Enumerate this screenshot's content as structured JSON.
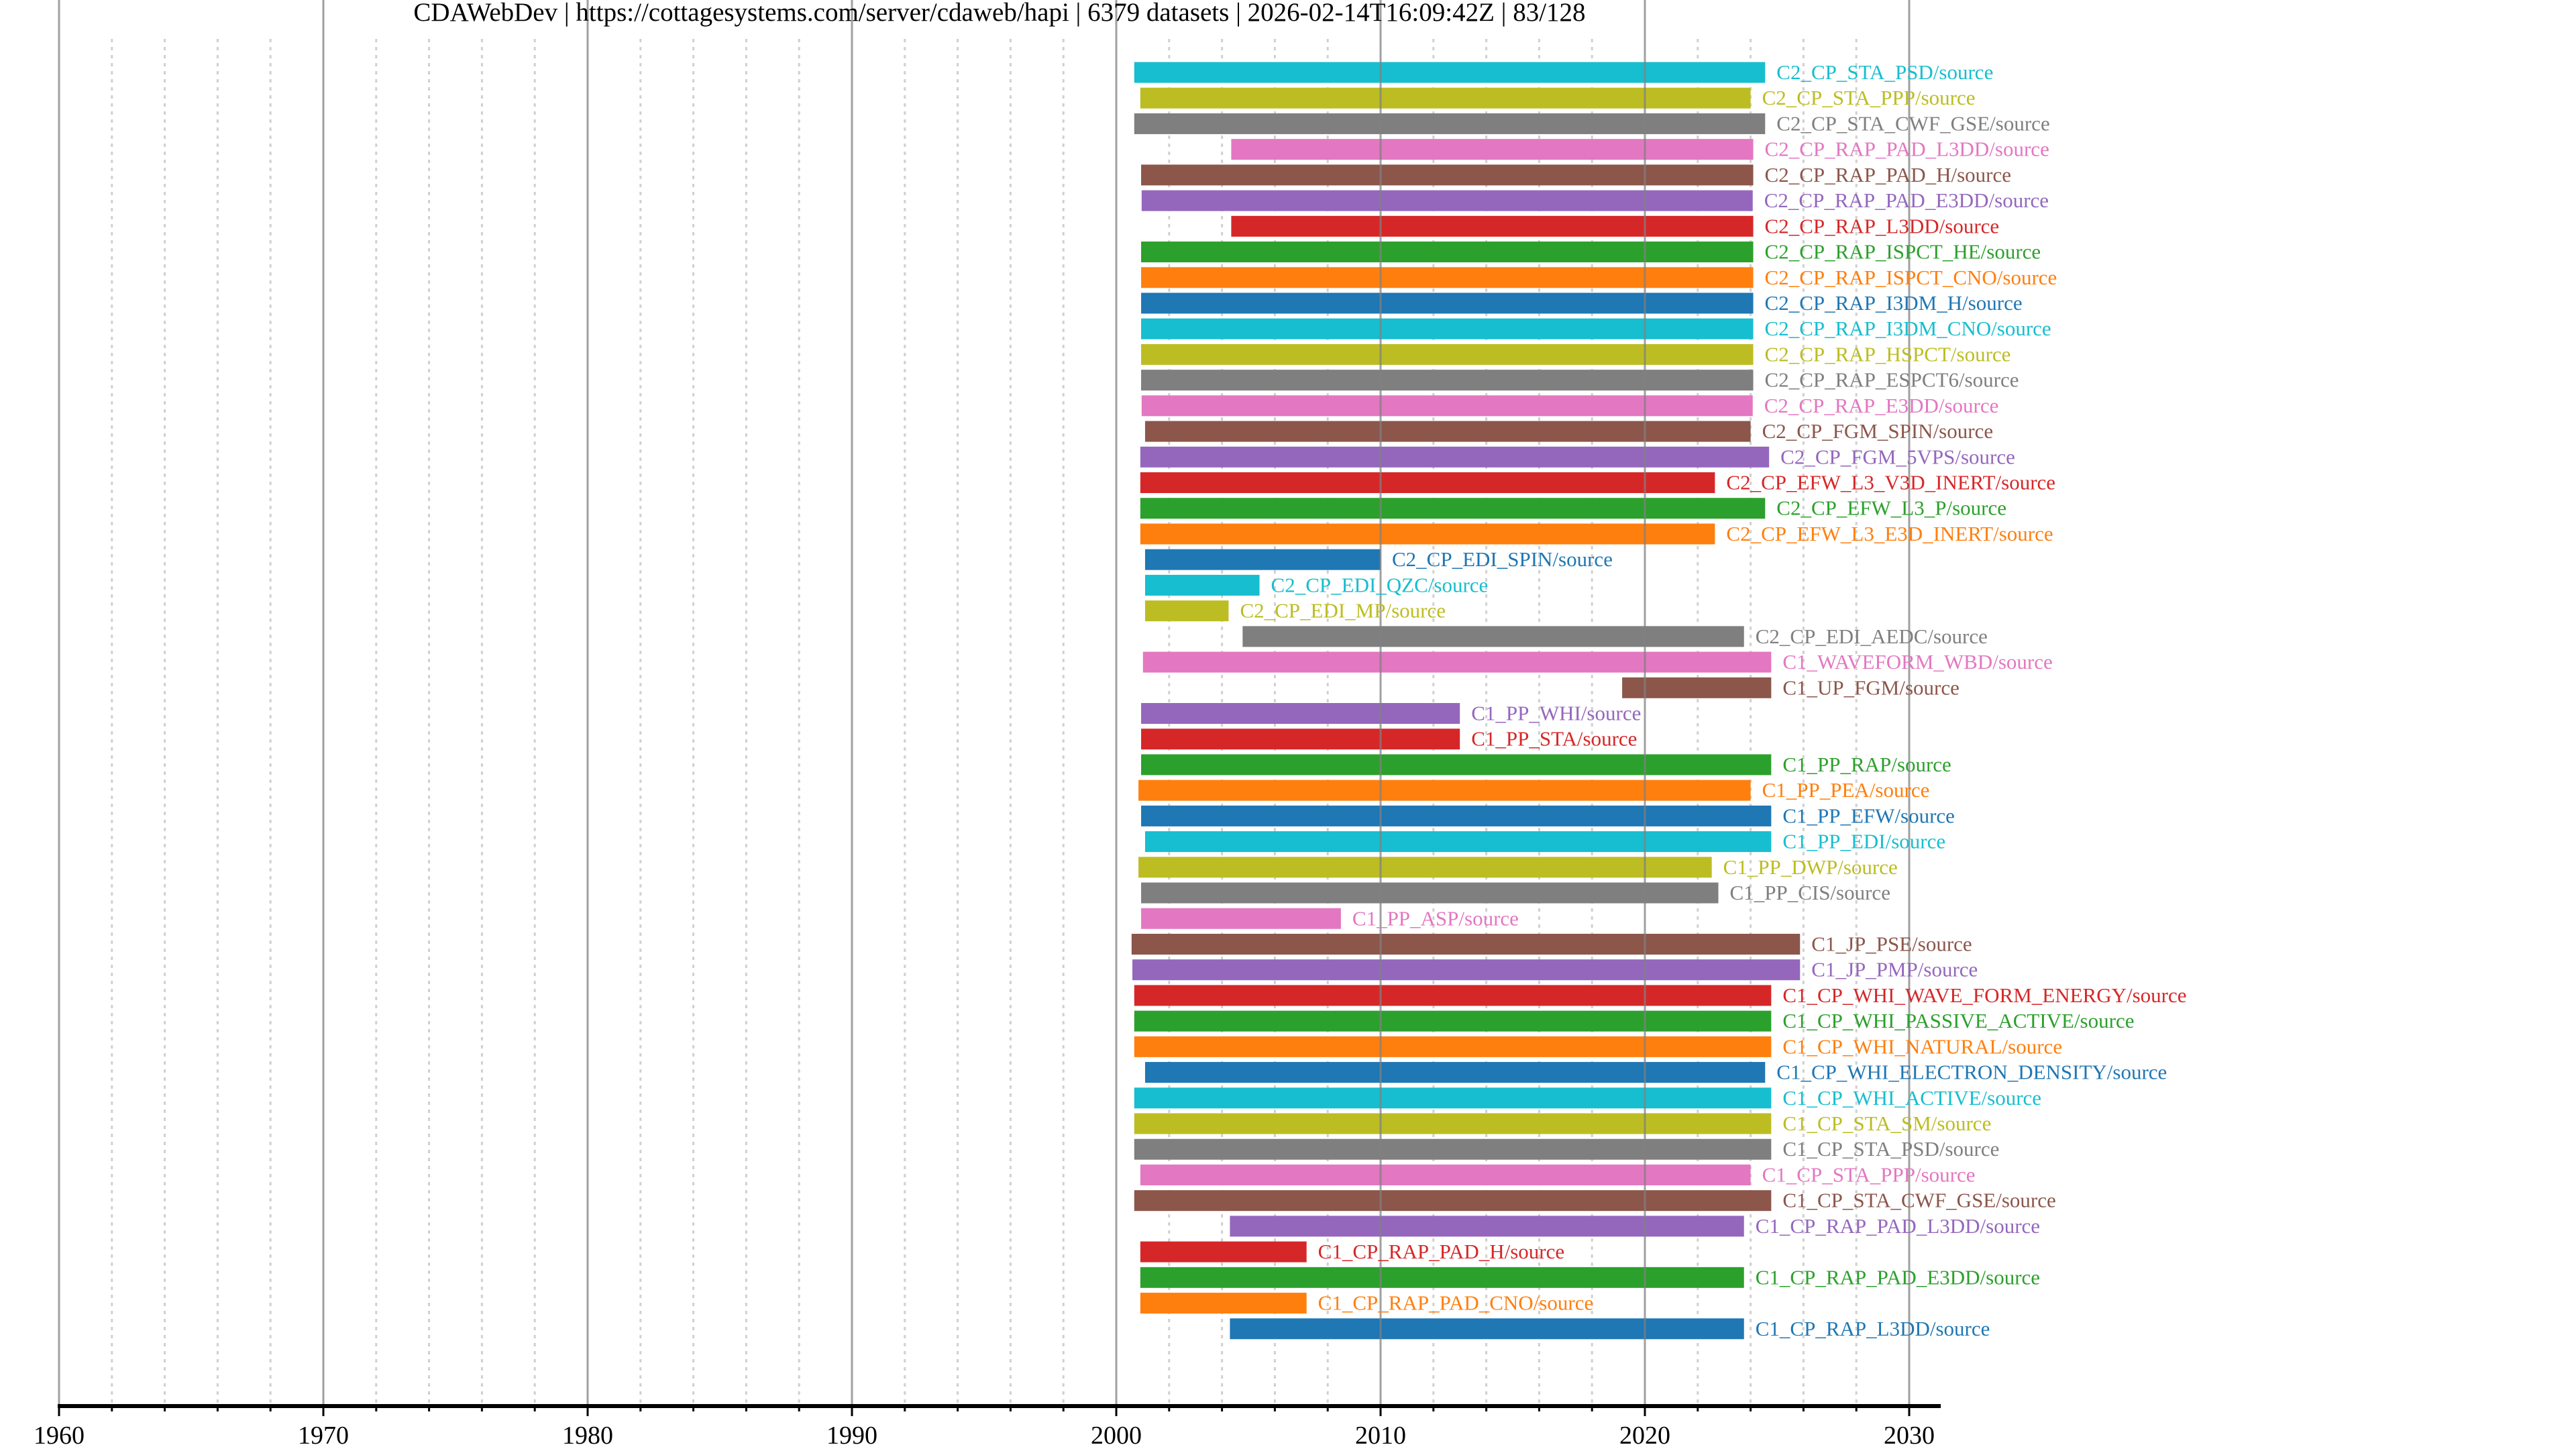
{
  "chart_data": {
    "type": "bar",
    "orientation": "horizontal-timeline",
    "title": "CDAWebDev | https://cottagesystems.com/server/cdaweb/hapi | 6379 datasets | 2026-02-14T16:09:42Z | 83/128",
    "title_parts": {
      "server_name": "CDAWebDev",
      "server_url": "https://cottagesystems.com/server/cdaweb/hapi",
      "dataset_count": "6379 datasets",
      "timestamp": "2026-02-14T16:09:42Z",
      "page": "83/128"
    },
    "xlabel": "",
    "ylabel": "",
    "xlim": [
      1960,
      2031.5
    ],
    "x_major_ticks": [
      1960,
      1970,
      1980,
      1990,
      2000,
      2010,
      2020,
      2030
    ],
    "x_tick_labels": [
      "1960",
      "1970",
      "1980",
      "1990",
      "2000",
      "2010",
      "2020",
      "2030"
    ],
    "x_minor_step": 2,
    "grid": true,
    "legend": "none",
    "palette": [
      "#1f77b4",
      "#ff7f0e",
      "#2ca02c",
      "#d62728",
      "#9467bd",
      "#8c564b",
      "#e377c2",
      "#7f7f7f",
      "#bcbd22",
      "#17becf"
    ],
    "series": [
      {
        "name": "C2_CP_STA_PSD/source",
        "start": 2000.68,
        "end": 2024.55,
        "color": "#17becf"
      },
      {
        "name": "C2_CP_STA_PPP/source",
        "start": 2000.91,
        "end": 2024.0,
        "color": "#bcbd22"
      },
      {
        "name": "C2_CP_STA_CWF_GSE/source",
        "start": 2000.68,
        "end": 2024.55,
        "color": "#7f7f7f"
      },
      {
        "name": "C2_CP_RAP_PAD_L3DD/source",
        "start": 2004.35,
        "end": 2024.1,
        "color": "#e377c2"
      },
      {
        "name": "C2_CP_RAP_PAD_H/source",
        "start": 2000.94,
        "end": 2024.1,
        "color": "#8c564b"
      },
      {
        "name": "C2_CP_RAP_PAD_E3DD/source",
        "start": 2000.96,
        "end": 2024.08,
        "color": "#9467bd"
      },
      {
        "name": "C2_CP_RAP_L3DD/source",
        "start": 2004.35,
        "end": 2024.1,
        "color": "#d62728"
      },
      {
        "name": "C2_CP_RAP_ISPCT_HE/source",
        "start": 2000.94,
        "end": 2024.1,
        "color": "#2ca02c"
      },
      {
        "name": "C2_CP_RAP_ISPCT_CNO/source",
        "start": 2000.94,
        "end": 2024.1,
        "color": "#ff7f0e"
      },
      {
        "name": "C2_CP_RAP_I3DM_H/source",
        "start": 2000.94,
        "end": 2024.1,
        "color": "#1f77b4"
      },
      {
        "name": "C2_CP_RAP_I3DM_CNO/source",
        "start": 2000.94,
        "end": 2024.1,
        "color": "#17becf"
      },
      {
        "name": "C2_CP_RAP_HSPCT/source",
        "start": 2000.94,
        "end": 2024.1,
        "color": "#bcbd22"
      },
      {
        "name": "C2_CP_RAP_ESPCT6/source",
        "start": 2000.94,
        "end": 2024.1,
        "color": "#7f7f7f"
      },
      {
        "name": "C2_CP_RAP_E3DD/source",
        "start": 2000.96,
        "end": 2024.08,
        "color": "#e377c2"
      },
      {
        "name": "C2_CP_FGM_SPIN/source",
        "start": 2001.09,
        "end": 2024.0,
        "color": "#8c564b"
      },
      {
        "name": "C2_CP_FGM_5VPS/source",
        "start": 2000.91,
        "end": 2024.7,
        "color": "#9467bd"
      },
      {
        "name": "C2_CP_EFW_L3_V3D_INERT/source",
        "start": 2000.91,
        "end": 2022.65,
        "color": "#d62728"
      },
      {
        "name": "C2_CP_EFW_L3_P/source",
        "start": 2000.91,
        "end": 2024.55,
        "color": "#2ca02c"
      },
      {
        "name": "C2_CP_EFW_L3_E3D_INERT/source",
        "start": 2000.91,
        "end": 2022.65,
        "color": "#ff7f0e"
      },
      {
        "name": "C2_CP_EDI_SPIN/source",
        "start": 2001.09,
        "end": 2010.0,
        "color": "#1f77b4"
      },
      {
        "name": "C2_CP_EDI_QZC/source",
        "start": 2001.09,
        "end": 2005.42,
        "color": "#17becf"
      },
      {
        "name": "C2_CP_EDI_MP/source",
        "start": 2001.09,
        "end": 2004.25,
        "color": "#bcbd22"
      },
      {
        "name": "C2_CP_EDI_AEDC/source",
        "start": 2004.78,
        "end": 2023.75,
        "color": "#7f7f7f"
      },
      {
        "name": "C1_WAVEFORM_WBD/source",
        "start": 2001.01,
        "end": 2024.78,
        "color": "#e377c2"
      },
      {
        "name": "C1_UP_FGM/source",
        "start": 2019.14,
        "end": 2024.78,
        "color": "#8c564b"
      },
      {
        "name": "C1_PP_WHI/source",
        "start": 2000.94,
        "end": 2013.0,
        "color": "#9467bd"
      },
      {
        "name": "C1_PP_STA/source",
        "start": 2000.94,
        "end": 2013.0,
        "color": "#d62728"
      },
      {
        "name": "C1_PP_RAP/source",
        "start": 2000.94,
        "end": 2024.78,
        "color": "#2ca02c"
      },
      {
        "name": "C1_PP_PEA/source",
        "start": 2000.84,
        "end": 2024.0,
        "color": "#ff7f0e"
      },
      {
        "name": "C1_PP_EFW/source",
        "start": 2000.94,
        "end": 2024.78,
        "color": "#1f77b4"
      },
      {
        "name": "C1_PP_EDI/source",
        "start": 2001.09,
        "end": 2024.78,
        "color": "#17becf"
      },
      {
        "name": "C1_PP_DWP/source",
        "start": 2000.84,
        "end": 2022.53,
        "color": "#bcbd22"
      },
      {
        "name": "C1_PP_CIS/source",
        "start": 2000.94,
        "end": 2022.78,
        "color": "#7f7f7f"
      },
      {
        "name": "C1_PP_ASP/source",
        "start": 2000.94,
        "end": 2008.5,
        "color": "#e377c2"
      },
      {
        "name": "C1_JP_PSE/source",
        "start": 2000.58,
        "end": 2025.87,
        "color": "#8c564b"
      },
      {
        "name": "C1_JP_PMP/source",
        "start": 2000.61,
        "end": 2025.87,
        "color": "#9467bd"
      },
      {
        "name": "C1_CP_WHI_WAVE_FORM_ENERGY/source",
        "start": 2000.68,
        "end": 2024.78,
        "color": "#d62728"
      },
      {
        "name": "C1_CP_WHI_PASSIVE_ACTIVE/source",
        "start": 2000.68,
        "end": 2024.78,
        "color": "#2ca02c"
      },
      {
        "name": "C1_CP_WHI_NATURAL/source",
        "start": 2000.68,
        "end": 2024.78,
        "color": "#ff7f0e"
      },
      {
        "name": "C1_CP_WHI_ELECTRON_DENSITY/source",
        "start": 2001.09,
        "end": 2024.55,
        "color": "#1f77b4"
      },
      {
        "name": "C1_CP_WHI_ACTIVE/source",
        "start": 2000.68,
        "end": 2024.78,
        "color": "#17becf"
      },
      {
        "name": "C1_CP_STA_SM/source",
        "start": 2000.68,
        "end": 2024.78,
        "color": "#bcbd22"
      },
      {
        "name": "C1_CP_STA_PSD/source",
        "start": 2000.68,
        "end": 2024.78,
        "color": "#7f7f7f"
      },
      {
        "name": "C1_CP_STA_PPP/source",
        "start": 2000.91,
        "end": 2024.0,
        "color": "#e377c2"
      },
      {
        "name": "C1_CP_STA_CWF_GSE/source",
        "start": 2000.68,
        "end": 2024.78,
        "color": "#8c564b"
      },
      {
        "name": "C1_CP_RAP_PAD_L3DD/source",
        "start": 2004.3,
        "end": 2023.75,
        "color": "#9467bd"
      },
      {
        "name": "C1_CP_RAP_PAD_H/source",
        "start": 2000.91,
        "end": 2007.2,
        "color": "#d62728"
      },
      {
        "name": "C1_CP_RAP_PAD_E3DD/source",
        "start": 2000.91,
        "end": 2023.75,
        "color": "#2ca02c"
      },
      {
        "name": "C1_CP_RAP_PAD_CNO/source",
        "start": 2000.91,
        "end": 2007.2,
        "color": "#ff7f0e"
      },
      {
        "name": "C1_CP_RAP_L3DD/source",
        "start": 2004.3,
        "end": 2023.75,
        "color": "#1f77b4"
      }
    ]
  }
}
